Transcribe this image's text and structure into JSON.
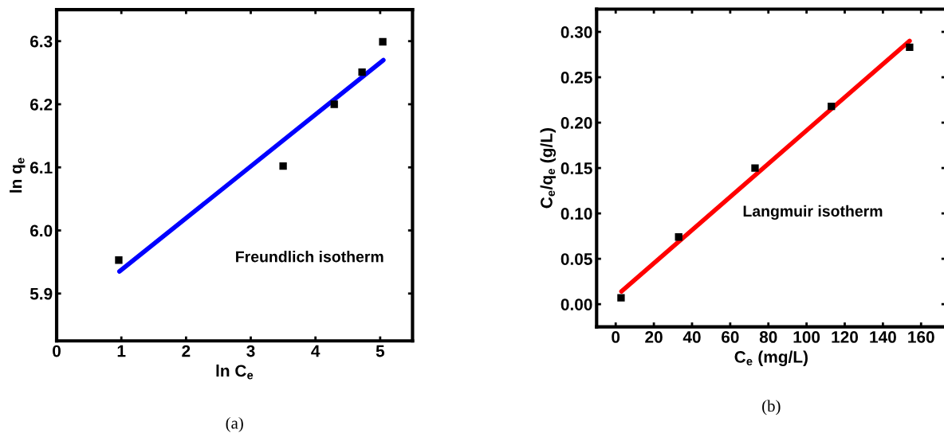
{
  "chart_data": [
    {
      "type": "scatter",
      "title": "(a)",
      "xlabel": "ln C$_{e}$",
      "ylabel": "ln q$_{e}$",
      "xlim": [
        0,
        5.5
      ],
      "ylim": [
        5.825,
        6.35
      ],
      "xticks": [
        0,
        1,
        2,
        3,
        4,
        5
      ],
      "yticks": [
        5.9,
        {
          "value": 6.0,
          "label": "6.0"
        },
        6.1,
        6.2,
        6.3
      ],
      "annotations": [
        "Freundlich isotherm"
      ],
      "grid": false,
      "legend": false,
      "series": [
        {
          "type": "scatter",
          "marker": "square",
          "color": "#000000",
          "x": [
            0.96,
            3.5,
            4.29,
            4.72,
            5.04
          ],
          "values": [
            5.953,
            6.102,
            6.2,
            6.251,
            6.299
          ]
        },
        {
          "type": "line",
          "marker": "none",
          "color": "#0000ff",
          "x": [
            0.97,
            5.05
          ],
          "values": [
            5.935,
            6.27
          ]
        }
      ]
    },
    {
      "type": "scatter",
      "title": "(b)",
      "xlabel": "C$_{e}$ (mg/L)",
      "ylabel": "C$_{e}$/q$_{e}$ (g/L)",
      "xlim": [
        -10,
        173
      ],
      "ylim": [
        -0.025,
        0.325
      ],
      "xticks": [
        0,
        20,
        40,
        60,
        80,
        100,
        120,
        140,
        160
      ],
      "yticks": [
        {
          "value": 0,
          "label": "0.00"
        },
        {
          "value": 0.05,
          "label": "0.05"
        },
        {
          "value": 0.1,
          "label": "0.10"
        },
        {
          "value": 0.15,
          "label": "0.15"
        },
        {
          "value": 0.2,
          "label": "0.20"
        },
        {
          "value": 0.25,
          "label": "0.25"
        },
        {
          "value": 0.3,
          "label": "0.30"
        }
      ],
      "annotations": [
        "Langmuir isotherm"
      ],
      "grid": false,
      "legend": false,
      "series": [
        {
          "type": "scatter",
          "marker": "square",
          "color": "#000000",
          "x": [
            2.8,
            33,
            73,
            113,
            154
          ],
          "values": [
            0.007,
            0.074,
            0.15,
            0.218,
            0.283
          ]
        },
        {
          "type": "line",
          "marker": "none",
          "color": "#ff0000",
          "x": [
            3,
            154
          ],
          "values": [
            0.014,
            0.29
          ]
        }
      ]
    }
  ]
}
